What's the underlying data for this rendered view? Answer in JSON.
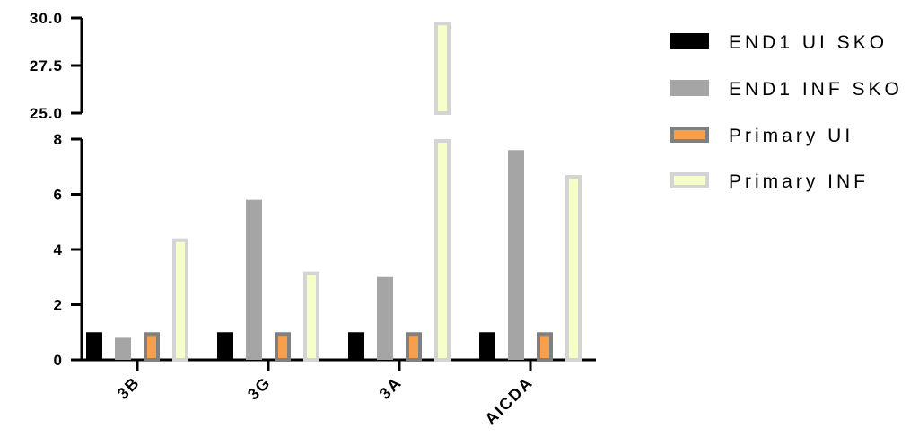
{
  "chart_data": {
    "type": "bar",
    "categories": [
      "3B",
      "3G",
      "3A",
      "AICDA"
    ],
    "series": [
      {
        "name": "END1 UI SKO",
        "values": [
          1.0,
          1.0,
          1.0,
          1.0
        ],
        "color": "#000000",
        "fill": "#000000"
      },
      {
        "name": "END1 INF SKO",
        "values": [
          0.8,
          5.8,
          3.0,
          7.6
        ],
        "color": "#a5a5a5",
        "fill": "#a5a5a5"
      },
      {
        "name": "Primary UI",
        "values": [
          1.0,
          1.0,
          1.0,
          1.0
        ],
        "color": "#808080",
        "fill": "#f6a04d"
      },
      {
        "name": "Primary INF",
        "values": [
          4.4,
          3.2,
          29.8,
          6.7
        ],
        "color": "#d4d4d4",
        "fill": "#f7ffc8"
      }
    ],
    "axis_break": {
      "lower": [
        0,
        8
      ],
      "upper": [
        25,
        30
      ]
    },
    "yticks_lower": [
      "0",
      "2",
      "4",
      "6",
      "8"
    ],
    "yticks_upper": [
      "25.0",
      "27.5",
      "30.0"
    ],
    "legend_position": "right",
    "grid": false,
    "title": "",
    "xlabel": "",
    "ylabel": ""
  }
}
